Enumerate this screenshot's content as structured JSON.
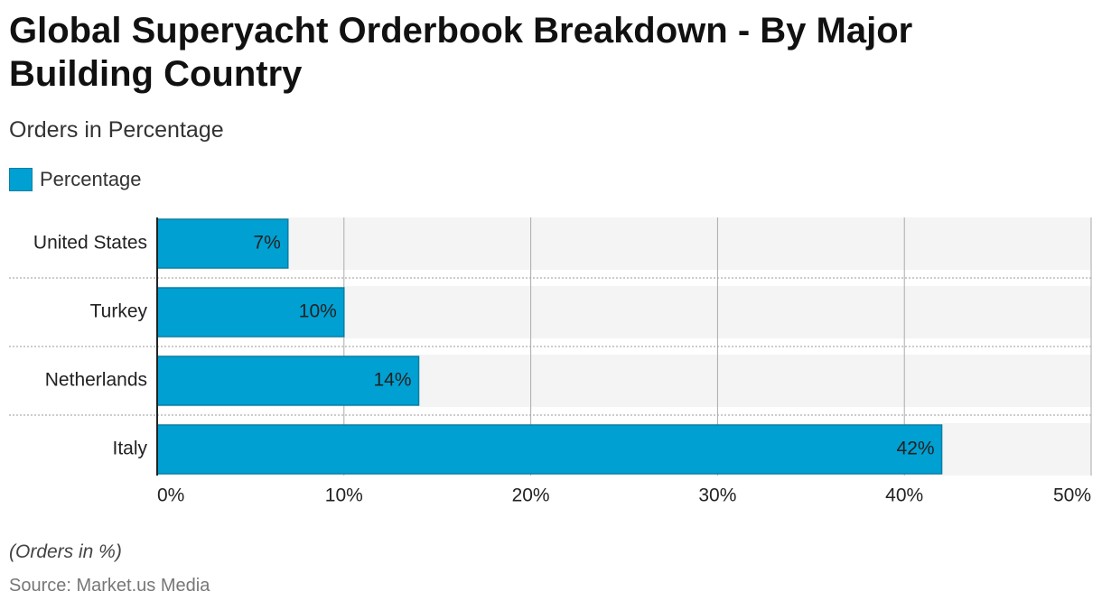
{
  "chart_data": {
    "type": "bar",
    "orientation": "horizontal",
    "title": "Global Superyacht Orderbook Breakdown - By Major Building Country",
    "subtitle": "Orders in Percentage",
    "series": [
      {
        "name": "Percentage",
        "color": "#00a0d2",
        "values": [
          7,
          10,
          14,
          42
        ],
        "value_labels": [
          "7%",
          "10%",
          "14%",
          "42%"
        ]
      }
    ],
    "categories": [
      "United States",
      "Turkey",
      "Netherlands",
      "Italy"
    ],
    "xlim": [
      0,
      50
    ],
    "xticks": [
      {
        "value": 0,
        "label": "0%"
      },
      {
        "value": 10,
        "label": "10%"
      },
      {
        "value": 20,
        "label": "20%"
      },
      {
        "value": 30,
        "label": "30%"
      },
      {
        "value": 40,
        "label": "40%"
      },
      {
        "value": 50,
        "label": "50%"
      }
    ],
    "grid": true,
    "note": "(Orders in %)",
    "source": "Source: Market.us Media"
  }
}
